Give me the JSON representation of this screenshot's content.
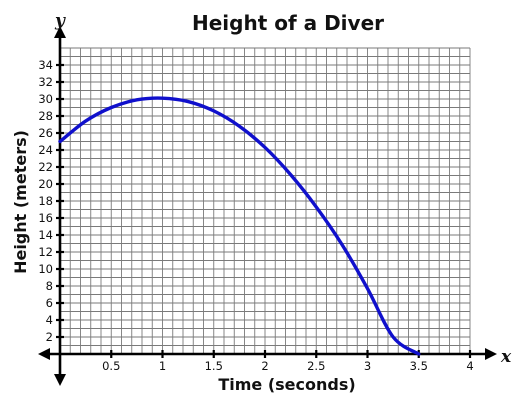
{
  "chart_data": {
    "type": "line",
    "title": "Height of a Diver",
    "xlabel": "Time (seconds)",
    "ylabel": "Height (meters)",
    "x_axis_var": "x",
    "y_axis_var": "y",
    "xlim": [
      0,
      4
    ],
    "ylim": [
      0,
      36
    ],
    "x_ticks": [
      0.5,
      1,
      1.5,
      2,
      2.5,
      3,
      3.5,
      4
    ],
    "x_tick_labels": [
      "0.5",
      "1",
      "1.5",
      "2",
      "2.5",
      "3",
      "3.5",
      "4"
    ],
    "y_ticks": [
      2,
      4,
      6,
      8,
      10,
      12,
      14,
      16,
      18,
      20,
      22,
      24,
      26,
      28,
      30,
      32,
      34
    ],
    "y_tick_labels": [
      "2",
      "4",
      "6",
      "8",
      "10",
      "12",
      "14",
      "16",
      "18",
      "20",
      "22",
      "24",
      "26",
      "28",
      "30",
      "32",
      "34"
    ],
    "grid": true,
    "series": [
      {
        "color": "#1010cc",
        "x": [
          0,
          0.25,
          0.5,
          0.75,
          1,
          1.25,
          1.5,
          1.75,
          2,
          2.25,
          2.5,
          2.75,
          3,
          3.25,
          3.5
        ],
        "y": [
          25,
          27.4,
          29,
          29.9,
          30.1,
          29.7,
          28.6,
          26.8,
          24.3,
          21.1,
          17.3,
          12.9,
          7.7,
          2,
          0
        ]
      }
    ]
  }
}
